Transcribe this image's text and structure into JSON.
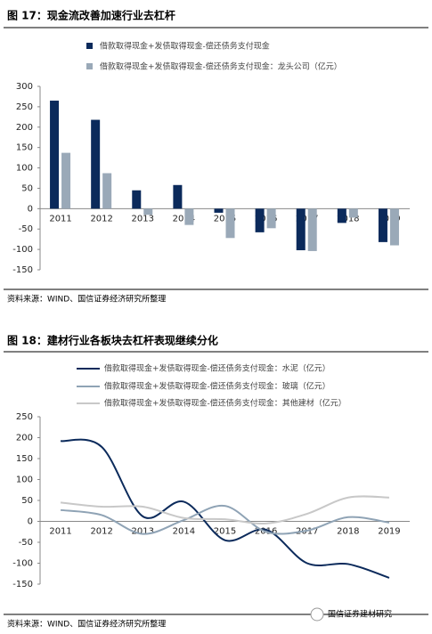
{
  "chart_data": [
    {
      "type": "bar",
      "title": "图 17：现金流改善加速行业去杠杆",
      "source": "资料来源：WIND、国信证券经济研究所整理",
      "categories": [
        "2011",
        "2012",
        "2013",
        "2014",
        "2015",
        "2016",
        "2017",
        "2018",
        "2019"
      ],
      "series": [
        {
          "name": "借款取得现金+发债取得现金-偿还债务支付现金",
          "color": "#0b2a5b",
          "values": [
            265,
            218,
            45,
            58,
            -10,
            -58,
            -102,
            -35,
            -82
          ]
        },
        {
          "name": "借款取得现金+发债取得现金-偿还债务支付现金：龙头公司（亿元）",
          "color": "#9aa9b8",
          "values": [
            137,
            87,
            -15,
            -40,
            -72,
            -48,
            -104,
            -22,
            -90
          ]
        }
      ],
      "ylim": [
        -150,
        300
      ],
      "yticks": [
        -150,
        -100,
        -50,
        0,
        50,
        100,
        150,
        200,
        250,
        300
      ]
    },
    {
      "type": "line",
      "title": "图 18：建材行业各板块去杠杆表现继续分化",
      "source": "资料来源：WIND、国信证券经济研究所整理",
      "categories": [
        "2011",
        "2012",
        "2013",
        "2014",
        "2015",
        "2016",
        "2017",
        "2018",
        "2019"
      ],
      "series": [
        {
          "name": "借款取得现金+发债取得现金-偿还债务支付现金：水泥（亿元）",
          "color": "#0b2a5b",
          "values": [
            192,
            178,
            12,
            47,
            -45,
            -20,
            -100,
            -102,
            -135
          ]
        },
        {
          "name": "借款取得现金+发债取得现金-偿还债务支付现金：玻璃（亿元）",
          "color": "#8fa3b5",
          "values": [
            27,
            15,
            -30,
            3,
            37,
            -25,
            -22,
            10,
            -3
          ]
        },
        {
          "name": "借款取得现金+发债取得现金-偿还债务支付现金：其他建材（亿元）",
          "color": "#c8c8c8",
          "values": [
            45,
            35,
            35,
            8,
            5,
            -5,
            18,
            57,
            57
          ]
        }
      ],
      "ylim": [
        -150,
        250
      ],
      "yticks": [
        -150,
        -100,
        -50,
        0,
        50,
        100,
        150,
        200,
        250
      ],
      "watermark": "国信证券建材研究"
    }
  ]
}
